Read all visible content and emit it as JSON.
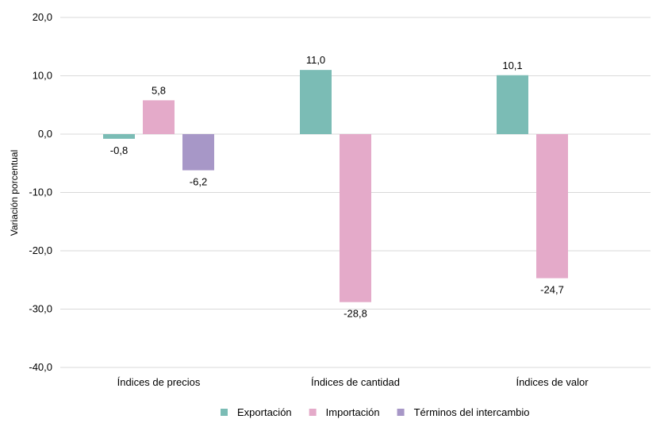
{
  "chart_data": {
    "type": "bar",
    "categories": [
      "Índices de precios",
      "Índices de cantidad",
      "Índices de valor"
    ],
    "series": [
      {
        "name": "Exportación",
        "color": "#7bbcb5",
        "values": [
          -0.8,
          11.0,
          10.1
        ],
        "labels": [
          "-0,8",
          "11,0",
          "10,1"
        ]
      },
      {
        "name": "Importación",
        "color": "#e4aac9",
        "values": [
          5.8,
          -28.8,
          -24.7
        ],
        "labels": [
          "5,8",
          "-28,8",
          "-24,7"
        ]
      },
      {
        "name": "Términos del intercambio",
        "color": "#a797c7",
        "values": [
          -6.2,
          null,
          null
        ],
        "labels": [
          "-6,2",
          "",
          ""
        ]
      }
    ],
    "ylabel": "Variación porcentual",
    "ylim": [
      -40,
      20
    ],
    "yticks": [
      20,
      10,
      0,
      -10,
      -20,
      -30,
      -40
    ],
    "ytick_labels": [
      "20,0",
      "10,0",
      "0,0",
      "-10,0",
      "-20,0",
      "-30,0",
      "-40,0"
    ],
    "grid": true,
    "legend_position": "bottom"
  }
}
